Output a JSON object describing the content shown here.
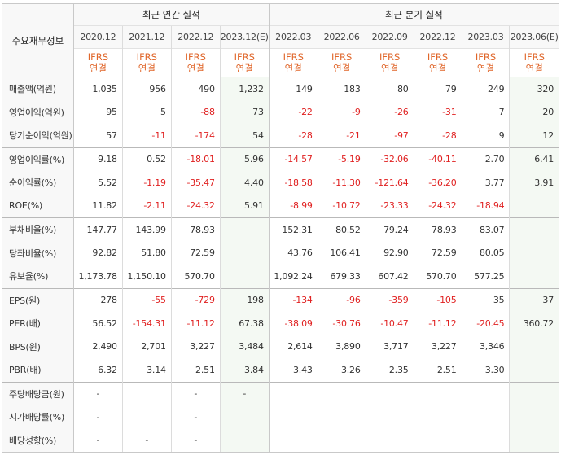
{
  "header": {
    "row_label": "주요재무정보",
    "annual_group": "최근 연간 실적",
    "quarter_group": "최근 분기 실적",
    "annual_periods": [
      "2020.12",
      "2021.12",
      "2022.12",
      "2023.12(E)"
    ],
    "quarter_periods": [
      "2022.03",
      "2022.06",
      "2022.09",
      "2022.12",
      "2023.03",
      "2023.06(E)"
    ],
    "basis_top": "IFRS",
    "basis_bottom": "연결"
  },
  "rows": [
    {
      "label": "매출액(억원)",
      "values": [
        "1,035",
        "956",
        "490",
        "1,232",
        "149",
        "183",
        "80",
        "79",
        "249",
        "320"
      ]
    },
    {
      "label": "영업이익(억원)",
      "values": [
        "95",
        "5",
        "-88",
        "73",
        "-22",
        "-9",
        "-26",
        "-31",
        "7",
        "20"
      ]
    },
    {
      "label": "당기순이익(억원)",
      "values": [
        "57",
        "-11",
        "-174",
        "54",
        "-28",
        "-21",
        "-97",
        "-28",
        "9",
        "12"
      ]
    },
    {
      "label": "영업이익률(%)",
      "values": [
        "9.18",
        "0.52",
        "-18.01",
        "5.96",
        "-14.57",
        "-5.19",
        "-32.06",
        "-40.11",
        "2.70",
        "6.41"
      ]
    },
    {
      "label": "순이익률(%)",
      "values": [
        "5.52",
        "-1.19",
        "-35.47",
        "4.40",
        "-18.58",
        "-11.30",
        "-121.64",
        "-36.20",
        "3.77",
        "3.91"
      ]
    },
    {
      "label": "ROE(%)",
      "values": [
        "11.82",
        "-2.11",
        "-24.32",
        "5.91",
        "-8.99",
        "-10.72",
        "-23.33",
        "-24.32",
        "-18.94",
        ""
      ]
    },
    {
      "label": "부채비율(%)",
      "values": [
        "147.77",
        "143.99",
        "78.93",
        "",
        "152.31",
        "80.52",
        "79.24",
        "78.93",
        "83.07",
        ""
      ]
    },
    {
      "label": "당좌비율(%)",
      "values": [
        "92.82",
        "51.80",
        "72.59",
        "",
        "43.76",
        "106.41",
        "92.90",
        "72.59",
        "80.05",
        ""
      ]
    },
    {
      "label": "유보율(%)",
      "values": [
        "1,173.78",
        "1,150.10",
        "570.70",
        "",
        "1,092.24",
        "679.33",
        "607.42",
        "570.70",
        "577.25",
        ""
      ]
    },
    {
      "label": "EPS(원)",
      "values": [
        "278",
        "-55",
        "-729",
        "198",
        "-134",
        "-96",
        "-359",
        "-105",
        "35",
        "37"
      ]
    },
    {
      "label": "PER(배)",
      "values": [
        "56.52",
        "-154.31",
        "-11.12",
        "67.38",
        "-38.09",
        "-30.76",
        "-10.47",
        "-11.12",
        "-20.45",
        "360.72"
      ]
    },
    {
      "label": "BPS(원)",
      "values": [
        "2,490",
        "2,701",
        "3,227",
        "3,484",
        "2,614",
        "3,890",
        "3,717",
        "3,227",
        "3,346",
        ""
      ]
    },
    {
      "label": "PBR(배)",
      "values": [
        "6.32",
        "3.14",
        "2.51",
        "3.84",
        "3.43",
        "3.26",
        "2.35",
        "2.51",
        "3.30",
        ""
      ]
    },
    {
      "label": "주당배당금(원)",
      "values": [
        "-",
        "",
        "-",
        "-",
        "",
        "",
        "",
        "",
        "",
        ""
      ]
    },
    {
      "label": "시가배당률(%)",
      "values": [
        "-",
        "",
        "-",
        "",
        "",
        "",
        "",
        "",
        "",
        ""
      ]
    },
    {
      "label": "배당성향(%)",
      "values": [
        "-",
        "-",
        "-",
        "",
        "",
        "",
        "",
        "",
        "",
        ""
      ]
    }
  ],
  "colors": {
    "negative": "#e02020",
    "basis": "#e0662a",
    "estimate_bg": "#f4f9f3",
    "label_bg": "#f8f8f8"
  }
}
